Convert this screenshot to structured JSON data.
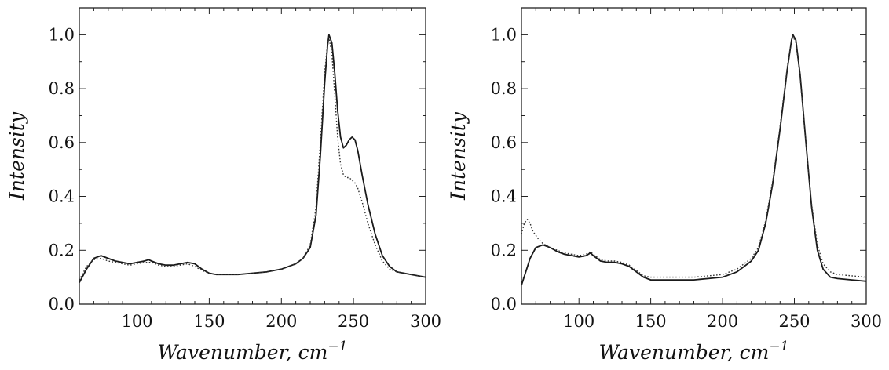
{
  "chart_data": [
    {
      "type": "line",
      "xlabel": "Wavenumber, cm",
      "xlabel_sup": "−1",
      "ylabel": "Intensity",
      "xlim": [
        60,
        300
      ],
      "ylim": [
        0,
        1.1
      ],
      "x_ticks": [
        "100",
        "150",
        "200",
        "250",
        "300"
      ],
      "x_tick_values": [
        100,
        150,
        200,
        250,
        300
      ],
      "y_ticks": [
        "0.0",
        "0.2",
        "0.4",
        "0.6",
        "0.8",
        "1.0"
      ],
      "y_tick_values": [
        0,
        0.2,
        0.4,
        0.6,
        0.8,
        1.0
      ],
      "series": [
        {
          "style": "solid",
          "points": [
            [
              60,
              0.08
            ],
            [
              65,
              0.13
            ],
            [
              70,
              0.17
            ],
            [
              75,
              0.18
            ],
            [
              80,
              0.17
            ],
            [
              85,
              0.16
            ],
            [
              90,
              0.155
            ],
            [
              95,
              0.15
            ],
            [
              100,
              0.155
            ],
            [
              105,
              0.16
            ],
            [
              108,
              0.165
            ],
            [
              110,
              0.16
            ],
            [
              115,
              0.15
            ],
            [
              120,
              0.145
            ],
            [
              125,
              0.145
            ],
            [
              130,
              0.15
            ],
            [
              135,
              0.155
            ],
            [
              140,
              0.15
            ],
            [
              145,
              0.13
            ],
            [
              150,
              0.115
            ],
            [
              155,
              0.11
            ],
            [
              160,
              0.11
            ],
            [
              170,
              0.11
            ],
            [
              180,
              0.115
            ],
            [
              190,
              0.12
            ],
            [
              200,
              0.13
            ],
            [
              210,
              0.15
            ],
            [
              215,
              0.17
            ],
            [
              220,
              0.21
            ],
            [
              224,
              0.33
            ],
            [
              227,
              0.55
            ],
            [
              230,
              0.82
            ],
            [
              232,
              0.96
            ],
            [
              233,
              1.0
            ],
            [
              235,
              0.97
            ],
            [
              237,
              0.86
            ],
            [
              239,
              0.72
            ],
            [
              241,
              0.62
            ],
            [
              243,
              0.58
            ],
            [
              245,
              0.59
            ],
            [
              247,
              0.61
            ],
            [
              249,
              0.62
            ],
            [
              251,
              0.61
            ],
            [
              253,
              0.57
            ],
            [
              256,
              0.48
            ],
            [
              260,
              0.37
            ],
            [
              265,
              0.26
            ],
            [
              270,
              0.18
            ],
            [
              275,
              0.14
            ],
            [
              280,
              0.12
            ],
            [
              290,
              0.11
            ],
            [
              300,
              0.1
            ]
          ]
        },
        {
          "style": "dotted",
          "points": [
            [
              60,
              0.09
            ],
            [
              65,
              0.14
            ],
            [
              70,
              0.165
            ],
            [
              75,
              0.17
            ],
            [
              80,
              0.16
            ],
            [
              85,
              0.155
            ],
            [
              90,
              0.15
            ],
            [
              95,
              0.145
            ],
            [
              100,
              0.15
            ],
            [
              105,
              0.155
            ],
            [
              110,
              0.155
            ],
            [
              115,
              0.145
            ],
            [
              120,
              0.14
            ],
            [
              125,
              0.14
            ],
            [
              130,
              0.145
            ],
            [
              135,
              0.15
            ],
            [
              140,
              0.14
            ],
            [
              145,
              0.125
            ],
            [
              150,
              0.115
            ],
            [
              155,
              0.11
            ],
            [
              160,
              0.11
            ],
            [
              170,
              0.11
            ],
            [
              180,
              0.115
            ],
            [
              190,
              0.12
            ],
            [
              200,
              0.13
            ],
            [
              210,
              0.15
            ],
            [
              215,
              0.17
            ],
            [
              220,
              0.22
            ],
            [
              224,
              0.36
            ],
            [
              227,
              0.6
            ],
            [
              230,
              0.86
            ],
            [
              232,
              0.97
            ],
            [
              233,
              0.99
            ],
            [
              235,
              0.93
            ],
            [
              237,
              0.78
            ],
            [
              239,
              0.62
            ],
            [
              241,
              0.52
            ],
            [
              243,
              0.48
            ],
            [
              245,
              0.47
            ],
            [
              247,
              0.47
            ],
            [
              249,
              0.46
            ],
            [
              251,
              0.45
            ],
            [
              253,
              0.43
            ],
            [
              256,
              0.38
            ],
            [
              260,
              0.3
            ],
            [
              265,
              0.22
            ],
            [
              270,
              0.16
            ],
            [
              275,
              0.13
            ],
            [
              280,
              0.12
            ],
            [
              290,
              0.11
            ],
            [
              300,
              0.1
            ]
          ]
        }
      ]
    },
    {
      "type": "line",
      "xlabel": "Wavenumber, cm",
      "xlabel_sup": "−1",
      "ylabel": "Intensity",
      "xlim": [
        60,
        300
      ],
      "ylim": [
        0,
        1.1
      ],
      "x_ticks": [
        "100",
        "150",
        "200",
        "250",
        "300"
      ],
      "x_tick_values": [
        100,
        150,
        200,
        250,
        300
      ],
      "y_ticks": [
        "0.0",
        "0.2",
        "0.4",
        "0.6",
        "0.8",
        "1.0"
      ],
      "y_tick_values": [
        0,
        0.2,
        0.4,
        0.6,
        0.8,
        1.0
      ],
      "series": [
        {
          "style": "solid",
          "points": [
            [
              60,
              0.07
            ],
            [
              63,
              0.12
            ],
            [
              66,
              0.17
            ],
            [
              70,
              0.21
            ],
            [
              75,
              0.22
            ],
            [
              80,
              0.21
            ],
            [
              85,
              0.195
            ],
            [
              90,
              0.185
            ],
            [
              95,
              0.18
            ],
            [
              100,
              0.175
            ],
            [
              105,
              0.18
            ],
            [
              108,
              0.19
            ],
            [
              110,
              0.18
            ],
            [
              115,
              0.16
            ],
            [
              120,
              0.155
            ],
            [
              125,
              0.155
            ],
            [
              130,
              0.15
            ],
            [
              135,
              0.14
            ],
            [
              140,
              0.12
            ],
            [
              145,
              0.1
            ],
            [
              150,
              0.09
            ],
            [
              160,
              0.09
            ],
            [
              170,
              0.09
            ],
            [
              180,
              0.09
            ],
            [
              190,
              0.095
            ],
            [
              200,
              0.1
            ],
            [
              210,
              0.12
            ],
            [
              220,
              0.16
            ],
            [
              225,
              0.2
            ],
            [
              230,
              0.3
            ],
            [
              235,
              0.45
            ],
            [
              240,
              0.65
            ],
            [
              245,
              0.87
            ],
            [
              248,
              0.98
            ],
            [
              249,
              1.0
            ],
            [
              251,
              0.98
            ],
            [
              254,
              0.85
            ],
            [
              258,
              0.6
            ],
            [
              262,
              0.36
            ],
            [
              266,
              0.2
            ],
            [
              270,
              0.13
            ],
            [
              275,
              0.1
            ],
            [
              280,
              0.095
            ],
            [
              290,
              0.09
            ],
            [
              300,
              0.085
            ]
          ]
        },
        {
          "style": "dotted",
          "points": [
            [
              60,
              0.26
            ],
            [
              62,
              0.3
            ],
            [
              64,
              0.315
            ],
            [
              66,
              0.3
            ],
            [
              68,
              0.27
            ],
            [
              72,
              0.24
            ],
            [
              75,
              0.225
            ],
            [
              80,
              0.21
            ],
            [
              85,
              0.2
            ],
            [
              90,
              0.19
            ],
            [
              95,
              0.185
            ],
            [
              100,
              0.18
            ],
            [
              105,
              0.185
            ],
            [
              108,
              0.195
            ],
            [
              110,
              0.185
            ],
            [
              115,
              0.165
            ],
            [
              120,
              0.16
            ],
            [
              125,
              0.16
            ],
            [
              130,
              0.155
            ],
            [
              135,
              0.145
            ],
            [
              140,
              0.125
            ],
            [
              145,
              0.105
            ],
            [
              150,
              0.1
            ],
            [
              160,
              0.1
            ],
            [
              170,
              0.1
            ],
            [
              180,
              0.1
            ],
            [
              190,
              0.105
            ],
            [
              200,
              0.11
            ],
            [
              210,
              0.13
            ],
            [
              220,
              0.17
            ],
            [
              225,
              0.21
            ],
            [
              230,
              0.31
            ],
            [
              235,
              0.46
            ],
            [
              240,
              0.66
            ],
            [
              245,
              0.88
            ],
            [
              248,
              0.98
            ],
            [
              249,
              0.995
            ],
            [
              251,
              0.97
            ],
            [
              254,
              0.84
            ],
            [
              258,
              0.6
            ],
            [
              262,
              0.37
            ],
            [
              266,
              0.22
            ],
            [
              270,
              0.15
            ],
            [
              275,
              0.12
            ],
            [
              280,
              0.11
            ],
            [
              290,
              0.105
            ],
            [
              300,
              0.1
            ]
          ]
        }
      ]
    }
  ]
}
